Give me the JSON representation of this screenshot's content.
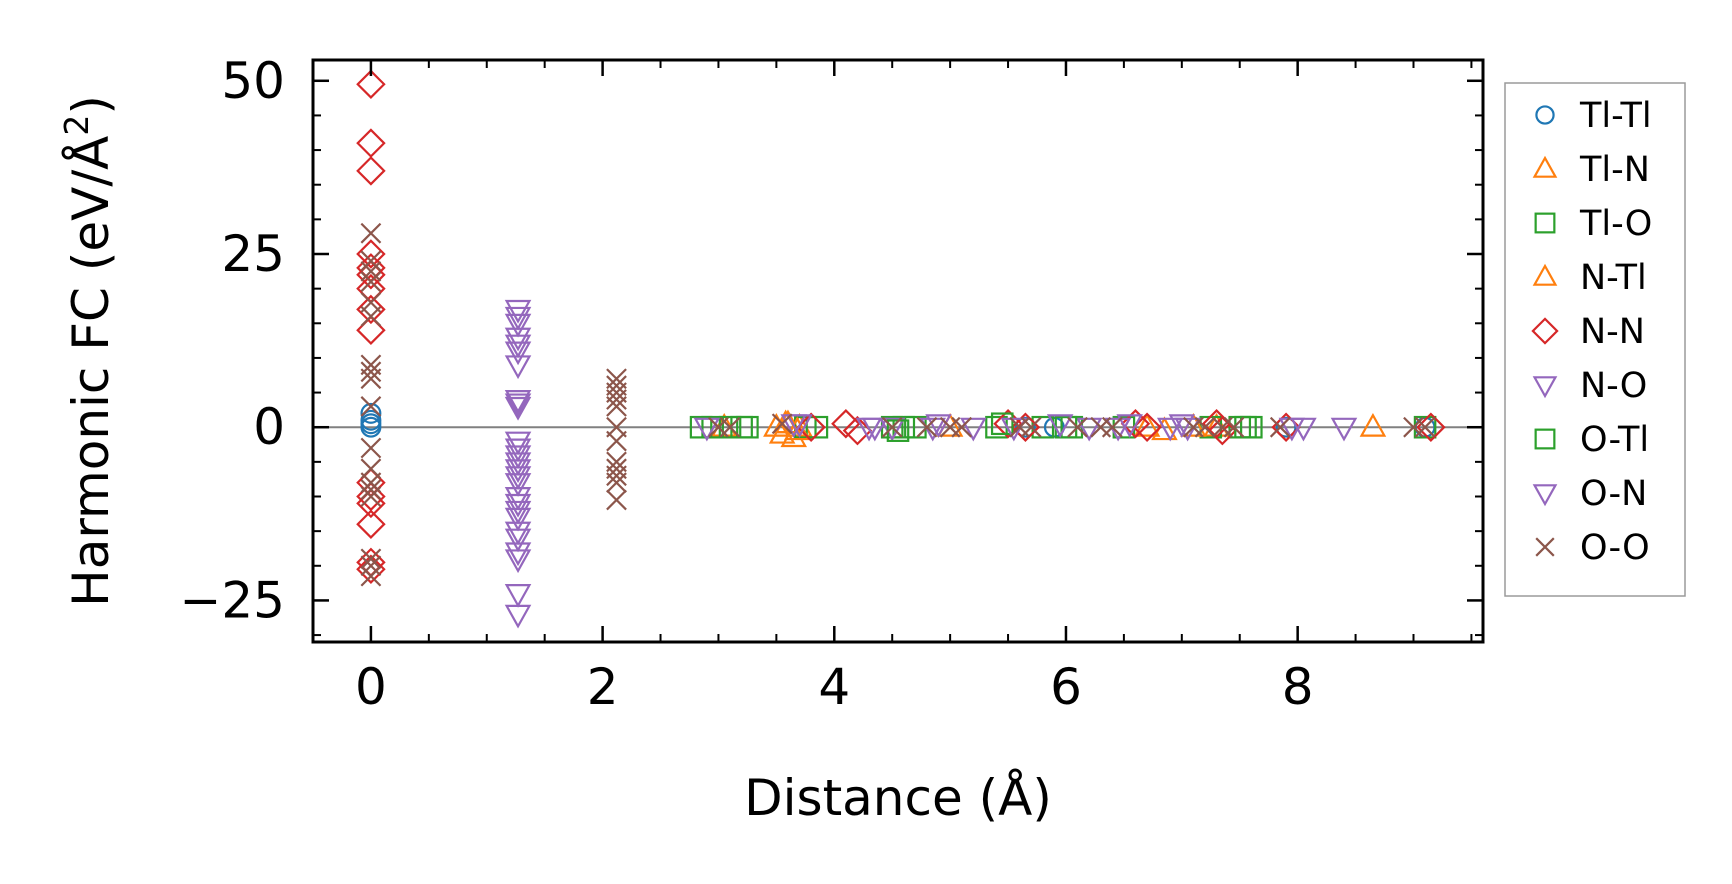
{
  "chart_data": {
    "type": "scatter",
    "title": "",
    "xlabel": "Distance (Å)",
    "ylabel_main": "Harmonic FC (eV/Å",
    "ylabel_sup": "2",
    "ylabel_end": ")",
    "xlim": [
      -0.5,
      9.6
    ],
    "ylim": [
      -31,
      53
    ],
    "xticks": [
      0,
      2,
      4,
      6,
      8
    ],
    "yticks": [
      50,
      25,
      0,
      -25
    ],
    "xtick_labels": [
      "0",
      "2",
      "4",
      "6",
      "8"
    ],
    "ytick_labels": [
      "50",
      "25",
      "0",
      "−25"
    ],
    "x_minor_step": 0.5,
    "y_minor_step": 5,
    "reference_line_y": 0,
    "grid": false,
    "legend_position": "outside-right",
    "series": [
      {
        "name": "Tl-Tl",
        "marker": "circle",
        "color": "#1f77b4",
        "points": [
          [
            0,
            2
          ],
          [
            0,
            1
          ],
          [
            0,
            0.5
          ],
          [
            0,
            0
          ],
          [
            5.65,
            0
          ],
          [
            5.9,
            0
          ],
          [
            7.9,
            0
          ],
          [
            9.1,
            0
          ]
        ]
      },
      {
        "name": "Tl-N",
        "marker": "triangle-up",
        "color": "#ff7f0e",
        "points": [
          [
            3.05,
            0
          ],
          [
            3.5,
            0
          ],
          [
            3.55,
            -1
          ],
          [
            3.6,
            0.5
          ],
          [
            3.65,
            -1.5
          ],
          [
            3.7,
            0
          ],
          [
            5.0,
            0
          ],
          [
            6.85,
            -0.5
          ],
          [
            7.3,
            0
          ],
          [
            8.65,
            0
          ]
        ]
      },
      {
        "name": "Tl-O",
        "marker": "square",
        "color": "#2ca02c",
        "points": [
          [
            2.85,
            0
          ],
          [
            2.95,
            0
          ],
          [
            3.1,
            0
          ],
          [
            3.25,
            0
          ],
          [
            3.75,
            0
          ],
          [
            3.85,
            0
          ],
          [
            4.5,
            0
          ],
          [
            4.6,
            0
          ],
          [
            4.7,
            0
          ],
          [
            5.4,
            0
          ],
          [
            5.8,
            0
          ],
          [
            6.05,
            0
          ],
          [
            6.5,
            0
          ],
          [
            7.25,
            0
          ],
          [
            7.5,
            0
          ],
          [
            7.6,
            0
          ],
          [
            9.1,
            0
          ]
        ]
      },
      {
        "name": "N-Tl",
        "marker": "triangle-up",
        "color": "#ff7f0e",
        "points": [
          [
            3.58,
            0.5
          ],
          [
            3.68,
            -0.5
          ],
          [
            6.7,
            0
          ],
          [
            7.1,
            0
          ]
        ]
      },
      {
        "name": "N-N",
        "marker": "diamond",
        "color": "#d62728",
        "points": [
          [
            0,
            49.5
          ],
          [
            0,
            41
          ],
          [
            0,
            37
          ],
          [
            0,
            25
          ],
          [
            0,
            23
          ],
          [
            0,
            22
          ],
          [
            0,
            20
          ],
          [
            0,
            17
          ],
          [
            0,
            14
          ],
          [
            0,
            -8
          ],
          [
            0,
            -10
          ],
          [
            0,
            -11
          ],
          [
            0,
            -14
          ],
          [
            0,
            -19.5
          ],
          [
            0,
            -20.5
          ],
          [
            3.8,
            0
          ],
          [
            4.1,
            0.5
          ],
          [
            4.2,
            -0.5
          ],
          [
            5.5,
            0.5
          ],
          [
            5.65,
            0
          ],
          [
            6.6,
            0.5
          ],
          [
            6.7,
            0
          ],
          [
            7.3,
            0.5
          ],
          [
            7.35,
            -0.5
          ],
          [
            7.9,
            0
          ],
          [
            9.15,
            0
          ]
        ]
      },
      {
        "name": "N-O",
        "marker": "triangle-down",
        "color": "#9467bd",
        "points": [
          [
            1.27,
            17
          ],
          [
            1.27,
            15
          ],
          [
            1.27,
            13
          ],
          [
            1.27,
            11
          ],
          [
            1.27,
            9
          ],
          [
            1.27,
            4
          ],
          [
            1.27,
            3
          ],
          [
            1.27,
            -2
          ],
          [
            1.27,
            -3
          ],
          [
            1.27,
            -5
          ],
          [
            1.27,
            -6
          ],
          [
            1.27,
            -8
          ],
          [
            1.27,
            -10
          ],
          [
            1.27,
            -12
          ],
          [
            1.27,
            -13
          ],
          [
            1.27,
            -16
          ],
          [
            1.27,
            -18
          ],
          [
            1.27,
            -19
          ],
          [
            1.27,
            -24
          ],
          [
            1.27,
            -27
          ],
          [
            2.9,
            0
          ],
          [
            3.7,
            0.5
          ],
          [
            4.3,
            0
          ],
          [
            4.5,
            0
          ],
          [
            4.85,
            0
          ],
          [
            5.2,
            0
          ],
          [
            6.2,
            0
          ],
          [
            6.55,
            0.5
          ],
          [
            6.9,
            0
          ],
          [
            7.05,
            0
          ],
          [
            7.95,
            0
          ],
          [
            8.05,
            0
          ],
          [
            8.4,
            0
          ]
        ]
      },
      {
        "name": "O-Tl",
        "marker": "square",
        "color": "#2ca02c",
        "points": [
          [
            3.2,
            0
          ],
          [
            4.55,
            -0.5
          ],
          [
            5.45,
            0.5
          ],
          [
            6.0,
            0
          ],
          [
            7.55,
            0
          ]
        ]
      },
      {
        "name": "O-N",
        "marker": "triangle-down",
        "color": "#9467bd",
        "points": [
          [
            1.27,
            16
          ],
          [
            1.27,
            12
          ],
          [
            1.27,
            3.5
          ],
          [
            1.27,
            -4
          ],
          [
            1.27,
            -7
          ],
          [
            1.27,
            -11
          ],
          [
            1.27,
            -15
          ],
          [
            3.65,
            0.5
          ],
          [
            4.35,
            0
          ],
          [
            4.9,
            0.5
          ],
          [
            5.55,
            0
          ],
          [
            5.95,
            0.5
          ],
          [
            6.45,
            0
          ],
          [
            7.0,
            0.5
          ]
        ]
      },
      {
        "name": "O-O",
        "marker": "x",
        "color": "#8c564b",
        "points": [
          [
            0,
            28
          ],
          [
            0,
            24
          ],
          [
            0,
            22.5
          ],
          [
            0,
            21
          ],
          [
            0,
            18
          ],
          [
            0,
            16
          ],
          [
            0,
            9
          ],
          [
            0,
            8
          ],
          [
            0,
            7
          ],
          [
            0,
            3
          ],
          [
            0,
            -3
          ],
          [
            0,
            -6
          ],
          [
            0,
            -8
          ],
          [
            0,
            -9
          ],
          [
            0,
            -10
          ],
          [
            0,
            -19
          ],
          [
            0,
            -20
          ],
          [
            0,
            -21.5
          ],
          [
            2.12,
            7
          ],
          [
            2.12,
            6
          ],
          [
            2.12,
            5
          ],
          [
            2.12,
            4
          ],
          [
            2.12,
            3
          ],
          [
            2.12,
            0
          ],
          [
            2.12,
            -2
          ],
          [
            2.12,
            -5
          ],
          [
            2.12,
            -6
          ],
          [
            2.12,
            -7
          ],
          [
            2.12,
            -8
          ],
          [
            2.12,
            -10.5
          ],
          [
            3.0,
            0
          ],
          [
            3.1,
            0
          ],
          [
            3.55,
            0.5
          ],
          [
            4.5,
            0
          ],
          [
            4.8,
            0
          ],
          [
            5.0,
            0
          ],
          [
            5.1,
            0
          ],
          [
            5.6,
            0
          ],
          [
            5.7,
            0
          ],
          [
            6.1,
            0
          ],
          [
            6.3,
            0
          ],
          [
            6.4,
            0
          ],
          [
            7.1,
            0
          ],
          [
            7.2,
            0
          ],
          [
            7.35,
            0
          ],
          [
            7.45,
            0
          ],
          [
            7.85,
            0
          ],
          [
            9.0,
            0
          ],
          [
            9.1,
            0
          ]
        ]
      }
    ]
  }
}
